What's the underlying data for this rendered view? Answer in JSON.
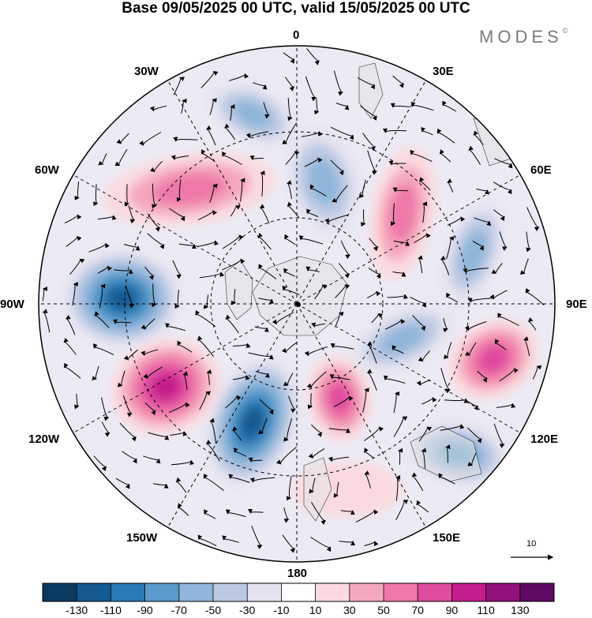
{
  "title": "Base 09/05/2025 00 UTC, valid 15/05/2025 00 UTC",
  "brand": "MODES",
  "brand_mark": "©",
  "longitude_labels": {
    "lon_0": "0",
    "lon_30e": "30E",
    "lon_60e": "60E",
    "lon_90e": "90E",
    "lon_120e": "120E",
    "lon_150e": "150E",
    "lon_180": "180",
    "lon_150w": "150W",
    "lon_120w": "120W",
    "lon_90w": "90W",
    "lon_60w": "60W",
    "lon_30w": "30W"
  },
  "reference_vector_label": "10",
  "colorbar": {
    "colors": [
      "#0b3a60",
      "#14598f",
      "#2a7ab5",
      "#5a9bcb",
      "#8fb5da",
      "#bcc9e3",
      "#e4e3f0",
      "#ffffff",
      "#fbdadf",
      "#f5a8bd",
      "#ee78a8",
      "#e04a9f",
      "#c41e8c",
      "#921079",
      "#5e0a63"
    ],
    "labels": [
      "-130",
      "-110",
      "-90",
      "-70",
      "-50",
      "-30",
      "-10",
      "10",
      "30",
      "50",
      "70",
      "90",
      "110",
      "130"
    ]
  },
  "map": {
    "projection": "north-polar-stereographic",
    "shaded_field_anomalies": [
      {
        "name": "greenland-high",
        "sign": "positive",
        "level": "70"
      },
      {
        "name": "north-atlantic-low",
        "sign": "negative",
        "level": "-50"
      },
      {
        "name": "north-america-low",
        "sign": "negative",
        "level": "-110"
      },
      {
        "name": "northeast-pacific-high",
        "sign": "positive",
        "level": "110"
      },
      {
        "name": "gulf-of-alaska-low",
        "sign": "negative",
        "level": "-110"
      },
      {
        "name": "bering-high",
        "sign": "positive",
        "level": "90"
      },
      {
        "name": "north-pacific-high",
        "sign": "positive",
        "level": "30"
      },
      {
        "name": "east-asia-low",
        "sign": "negative",
        "level": "-70"
      },
      {
        "name": "central-asia-high",
        "sign": "positive",
        "level": "90"
      },
      {
        "name": "siberia-low",
        "sign": "negative",
        "level": "-50"
      },
      {
        "name": "scandinavia-high",
        "sign": "positive",
        "level": "70"
      },
      {
        "name": "europe-low",
        "sign": "negative",
        "level": "-50"
      },
      {
        "name": "ural-low",
        "sign": "negative",
        "level": "-50"
      }
    ]
  }
}
